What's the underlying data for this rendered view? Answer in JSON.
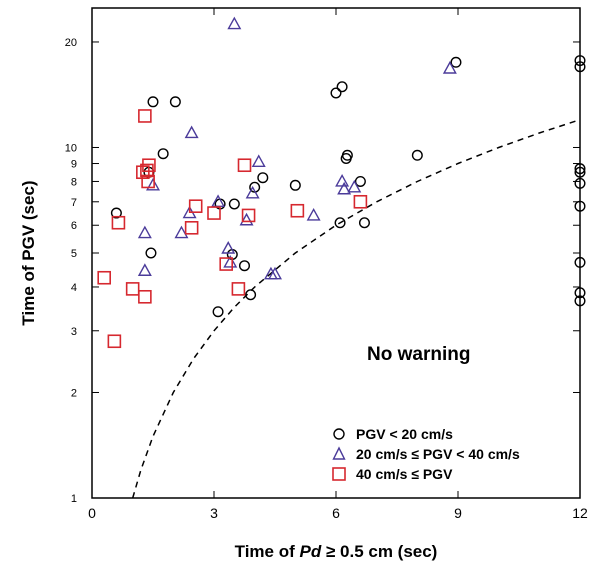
{
  "chart_data": {
    "type": "scatter",
    "title": "",
    "xlabel_parts": [
      "Time of ",
      "Pd",
      " ≥ 0.5 cm (sec)"
    ],
    "ylabel": "Time of PGV (sec)",
    "x_scale": "linear",
    "y_scale": "log",
    "xlim": [
      0,
      12
    ],
    "ylim": [
      1,
      25
    ],
    "x_ticks": [
      0,
      3,
      6,
      9,
      12
    ],
    "y_ticks": [
      1,
      2,
      3,
      4,
      5,
      6,
      7,
      8,
      9,
      10,
      20
    ],
    "y_tick_labels": [
      "1",
      "2",
      "3",
      "4",
      "5",
      "6",
      "7",
      "8",
      "9",
      "10",
      "20"
    ],
    "annotation": "No warning",
    "legend_position": "bottom-right",
    "threshold_curve": {
      "style": "dashed",
      "points": [
        [
          1.0,
          1.0
        ],
        [
          1.2,
          1.2
        ],
        [
          1.5,
          1.5
        ],
        [
          2,
          2
        ],
        [
          2.5,
          2.5
        ],
        [
          3,
          3
        ],
        [
          3.5,
          3.5
        ],
        [
          4,
          4
        ],
        [
          5,
          5
        ],
        [
          6,
          6
        ],
        [
          7,
          7
        ],
        [
          8,
          8
        ],
        [
          9,
          9
        ],
        [
          10,
          10
        ],
        [
          11,
          11
        ],
        [
          12,
          12
        ]
      ]
    },
    "series": [
      {
        "name": "PGV < 20 cm/s",
        "marker": "circle",
        "color": "#000000",
        "points": [
          [
            0.6,
            6.5
          ],
          [
            1.4,
            8.5
          ],
          [
            1.45,
            5.0
          ],
          [
            1.5,
            13.5
          ],
          [
            1.75,
            9.6
          ],
          [
            2.05,
            13.5
          ],
          [
            3.1,
            3.4
          ],
          [
            3.15,
            6.9
          ],
          [
            3.45,
            4.95
          ],
          [
            3.5,
            6.9
          ],
          [
            3.75,
            4.6
          ],
          [
            3.9,
            3.8
          ],
          [
            4.0,
            7.7
          ],
          [
            4.2,
            8.2
          ],
          [
            5.0,
            7.8
          ],
          [
            6.0,
            14.3
          ],
          [
            6.1,
            6.1
          ],
          [
            6.15,
            14.9
          ],
          [
            6.25,
            9.3
          ],
          [
            6.28,
            9.5
          ],
          [
            6.6,
            8.0
          ],
          [
            6.7,
            6.1
          ],
          [
            8.0,
            9.5
          ],
          [
            8.95,
            17.5
          ],
          [
            12,
            17.7
          ],
          [
            12,
            17.0
          ],
          [
            12,
            8.7
          ],
          [
            12,
            8.5
          ],
          [
            12,
            7.9
          ],
          [
            12,
            6.8
          ],
          [
            12,
            4.7
          ],
          [
            12,
            3.85
          ],
          [
            12,
            3.65
          ]
        ]
      },
      {
        "name": "20 cm/s ≤ PGV < 40 cm/s",
        "marker": "triangle",
        "color": "#4b3b9a",
        "points": [
          [
            1.3,
            5.7
          ],
          [
            1.3,
            4.45
          ],
          [
            1.5,
            7.8
          ],
          [
            2.2,
            5.7
          ],
          [
            2.4,
            6.5
          ],
          [
            2.45,
            11.0
          ],
          [
            3.1,
            7.0
          ],
          [
            3.35,
            5.15
          ],
          [
            3.4,
            4.7
          ],
          [
            3.5,
            22.5
          ],
          [
            3.8,
            6.2
          ],
          [
            3.95,
            7.4
          ],
          [
            4.1,
            9.1
          ],
          [
            4.4,
            4.35
          ],
          [
            4.5,
            4.35
          ],
          [
            5.45,
            6.4
          ],
          [
            6.15,
            8.0
          ],
          [
            6.2,
            7.6
          ],
          [
            6.45,
            7.7
          ],
          [
            8.8,
            16.8
          ]
        ]
      },
      {
        "name": "40 cm/s ≤ PGV",
        "marker": "square",
        "color": "#d6282f",
        "points": [
          [
            0.3,
            4.25
          ],
          [
            0.55,
            2.8
          ],
          [
            0.65,
            6.1
          ],
          [
            1.0,
            3.95
          ],
          [
            1.25,
            8.5
          ],
          [
            1.3,
            12.3
          ],
          [
            1.3,
            3.75
          ],
          [
            1.35,
            8.6
          ],
          [
            1.38,
            8.0
          ],
          [
            1.4,
            8.9
          ],
          [
            2.45,
            5.9
          ],
          [
            2.55,
            6.8
          ],
          [
            3.0,
            6.5
          ],
          [
            3.3,
            4.65
          ],
          [
            3.6,
            3.95
          ],
          [
            3.75,
            8.9
          ],
          [
            3.85,
            6.4
          ],
          [
            5.05,
            6.6
          ],
          [
            6.6,
            7.0
          ]
        ]
      }
    ]
  }
}
